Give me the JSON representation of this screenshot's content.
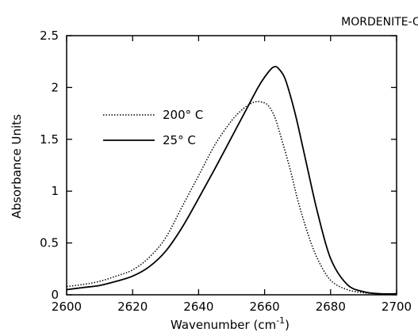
{
  "chart_data": {
    "type": "line",
    "title": "MORDENITE-OD",
    "xlabel": "Wavenumber (cm",
    "xlabel_sup": "-1",
    "xlabel_close": ")",
    "ylabel": "Absorbance Units",
    "xlim": [
      2600,
      2700
    ],
    "ylim": [
      0,
      2.5
    ],
    "xticks": [
      2600,
      2620,
      2640,
      2660,
      2680,
      2700
    ],
    "yticks": [
      0,
      0.5,
      1,
      1.5,
      2,
      2.5
    ],
    "xtick_labels": [
      "2600",
      "2620",
      "2640",
      "2660",
      "2680",
      "2700"
    ],
    "ytick_labels": [
      "0",
      "0.5",
      "1",
      "1.5",
      "2",
      "2.5"
    ],
    "grid": false,
    "legend_position": "upper-left",
    "series": [
      {
        "name": "200° C",
        "line_style": "dotted",
        "x": [
          2600,
          2605,
          2610,
          2615,
          2620,
          2625,
          2630,
          2635,
          2640,
          2645,
          2650,
          2653,
          2655,
          2657,
          2659,
          2661,
          2663,
          2665,
          2668,
          2670,
          2673,
          2676,
          2680,
          2685,
          2690,
          2695,
          2700
        ],
        "y": [
          0.08,
          0.1,
          0.13,
          0.18,
          0.24,
          0.36,
          0.55,
          0.85,
          1.15,
          1.45,
          1.68,
          1.78,
          1.83,
          1.86,
          1.86,
          1.83,
          1.72,
          1.52,
          1.18,
          0.92,
          0.6,
          0.35,
          0.14,
          0.05,
          0.02,
          0.01,
          0.01
        ]
      },
      {
        "name": "25° C",
        "line_style": "solid",
        "x": [
          2600,
          2605,
          2610,
          2615,
          2620,
          2625,
          2630,
          2635,
          2640,
          2645,
          2650,
          2655,
          2658,
          2660,
          2662,
          2663,
          2664,
          2666,
          2668,
          2670,
          2673,
          2676,
          2680,
          2685,
          2690,
          2695,
          2700
        ],
        "y": [
          0.05,
          0.07,
          0.09,
          0.13,
          0.18,
          0.27,
          0.42,
          0.65,
          0.93,
          1.22,
          1.52,
          1.82,
          2.0,
          2.1,
          2.18,
          2.2,
          2.19,
          2.1,
          1.9,
          1.65,
          1.22,
          0.8,
          0.35,
          0.1,
          0.03,
          0.01,
          0.01
        ]
      }
    ]
  }
}
